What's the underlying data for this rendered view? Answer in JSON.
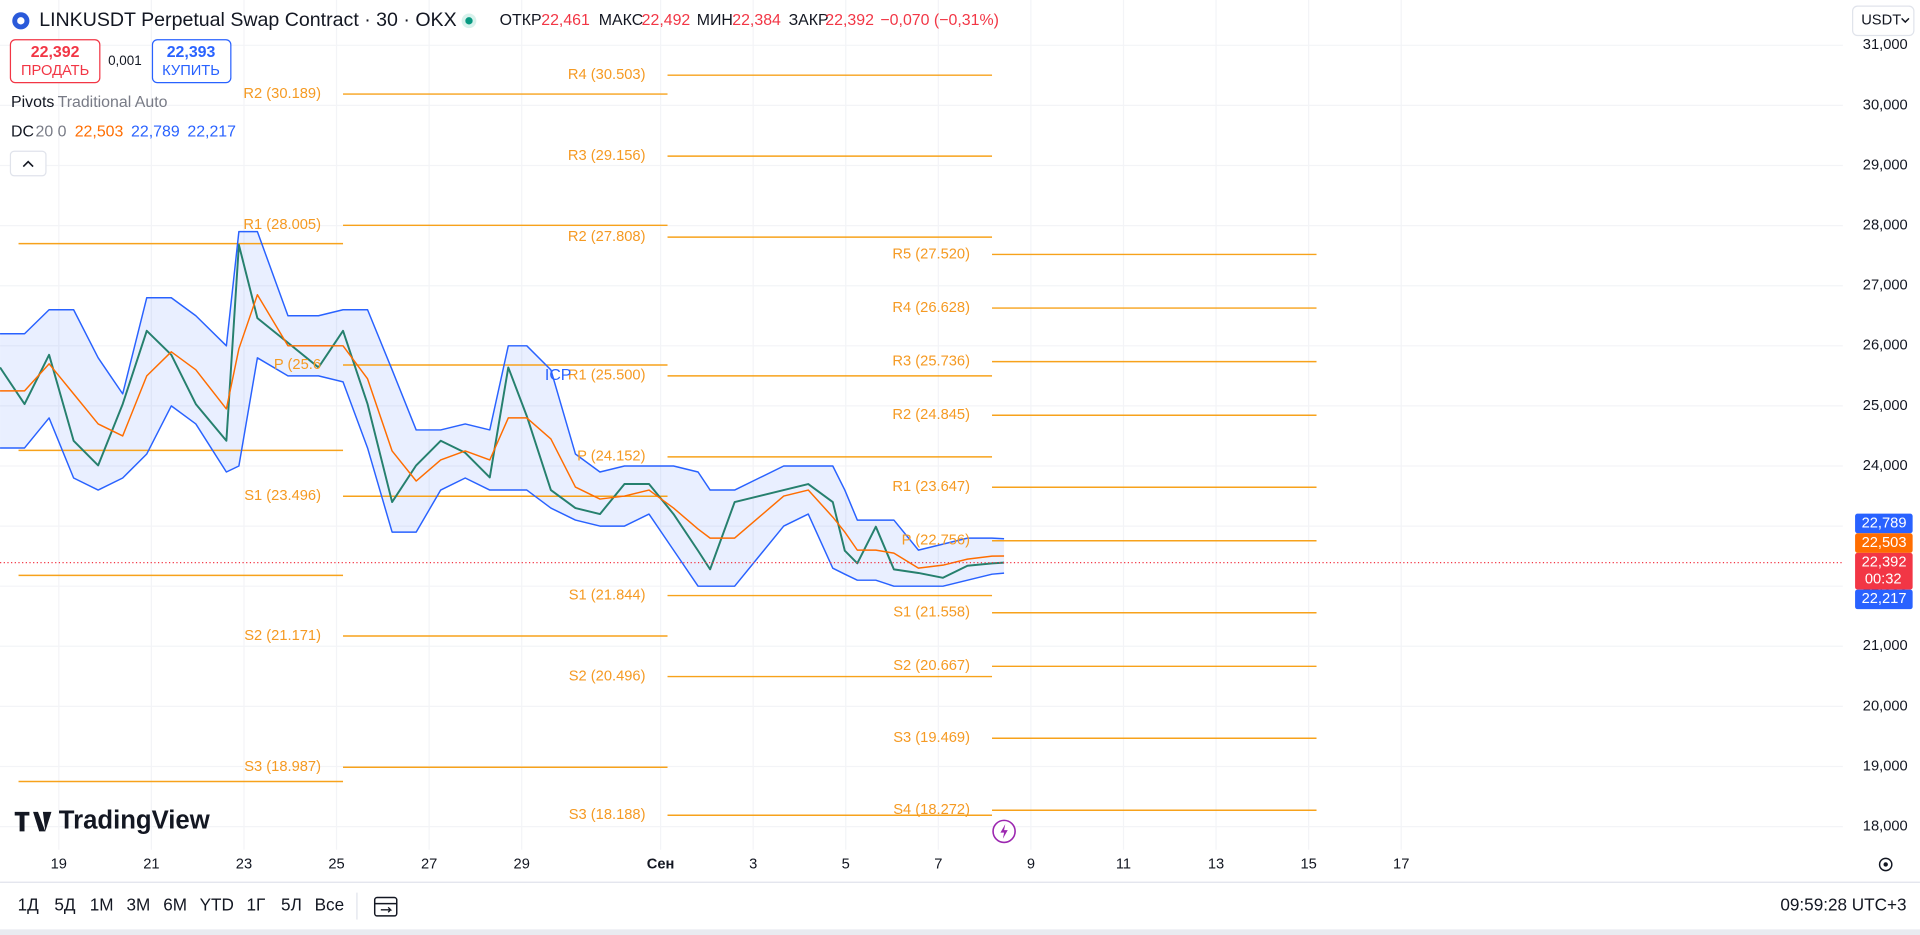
{
  "header": {
    "title": "LINKUSDT Perpetual Swap Contract · 30 · OKX",
    "ohlc": [
      {
        "label": "ОТКР",
        "value": "22,461"
      },
      {
        "label": "МАКС",
        "value": "22,492"
      },
      {
        "label": "МИН",
        "value": "22,384"
      },
      {
        "label": "ЗАКР",
        "value": "22,392"
      }
    ],
    "change": "−0,070 (−0,31%)",
    "currency": "USDT"
  },
  "trade": {
    "sell_price": "22,392",
    "sell": "ПРОДАТЬ",
    "spread": "0,001",
    "buy_price": "22,393",
    "buy": "КУПИТЬ"
  },
  "indicators": {
    "pivots": "Pivots",
    "pivots_settings": "Traditional Auto",
    "dc": "DC",
    "dc_settings": "20 0",
    "dc_values": [
      "22,503",
      "22,789",
      "22,217"
    ]
  },
  "annotation": "ICP",
  "logo": "TradingView",
  "toolbar": {
    "ranges": [
      "1Д",
      "5Д",
      "1М",
      "3М",
      "6М",
      "YTD",
      "1Г",
      "5Л",
      "Все"
    ],
    "clock": "09:59:28 UTC+3"
  },
  "chart_data": {
    "type": "line",
    "grid": true,
    "xlim": [
      17.73,
      57.54
    ],
    "ylim": [
      17.614,
      31.754
    ],
    "xticks": [
      19,
      21,
      23,
      25,
      27,
      29,
      {
        "value": 32,
        "label": "Сен"
      },
      {
        "value": 34,
        "label": "3"
      },
      {
        "value": 36,
        "label": "5"
      },
      {
        "value": 38,
        "label": "7"
      },
      {
        "value": 40,
        "label": "9"
      },
      {
        "value": 42,
        "label": "11"
      },
      {
        "value": 44,
        "label": "13"
      },
      {
        "value": 46,
        "label": "15"
      },
      {
        "value": 48,
        "label": "17"
      }
    ],
    "yticks": [
      {
        "value": 18,
        "label": "18,000"
      },
      {
        "value": 19,
        "label": "19,000"
      },
      {
        "value": 20,
        "label": "20,000"
      },
      {
        "value": 21,
        "label": "21,000"
      },
      {
        "value": 22,
        "label": "22,000"
      },
      {
        "value": 23,
        "label": "23,000"
      },
      {
        "value": 24,
        "label": "24,000"
      },
      {
        "value": 25,
        "label": "25,000"
      },
      {
        "value": 26,
        "label": "26,000"
      },
      {
        "value": 27,
        "label": "27,000"
      },
      {
        "value": 28,
        "label": "28,000"
      },
      {
        "value": 29,
        "label": "29,000"
      },
      {
        "value": 30,
        "label": "30,000"
      },
      {
        "value": 31,
        "label": "31,000"
      }
    ],
    "x": [
      17.73,
      18.26,
      18.79,
      19.32,
      19.85,
      20.38,
      20.9,
      21.43,
      21.96,
      22.62,
      22.89,
      23.29,
      23.95,
      24.61,
      25.14,
      25.67,
      26.2,
      26.72,
      27.25,
      27.78,
      28.31,
      28.71,
      29.11,
      29.63,
      30.16,
      30.69,
      31.22,
      31.75,
      32.28,
      32.81,
      33.07,
      33.6,
      34.13,
      34.66,
      35.19,
      35.72,
      35.98,
      36.25,
      36.65,
      37.04,
      37.57,
      38.1,
      38.63,
      39.16,
      39.42
    ],
    "series": [
      {
        "color": "#26806e",
        "values": [
          25.64,
          25.03,
          25.85,
          24.42,
          24.01,
          25.03,
          26.25,
          25.85,
          25.03,
          24.42,
          27.68,
          26.46,
          26.05,
          25.64,
          26.25,
          25.03,
          23.4,
          24.01,
          24.42,
          24.22,
          23.81,
          25.64,
          24.83,
          23.6,
          23.3,
          23.2,
          23.7,
          23.7,
          23.2,
          22.59,
          22.28,
          23.4,
          23.5,
          23.6,
          23.7,
          23.4,
          22.59,
          22.38,
          22.99,
          22.28,
          22.22,
          22.14,
          22.34,
          22.38,
          22.392
        ]
      },
      {
        "color": "#ff6d00",
        "values": [
          25.25,
          25.25,
          25.7,
          25.2,
          24.7,
          24.5,
          25.5,
          25.9,
          25.6,
          24.95,
          25.95,
          26.85,
          26.0,
          26.0,
          26.0,
          25.45,
          24.25,
          23.75,
          24.1,
          24.25,
          24.1,
          24.8,
          24.8,
          24.45,
          23.65,
          23.45,
          23.5,
          23.6,
          23.3,
          22.95,
          22.8,
          22.8,
          23.15,
          23.5,
          23.6,
          23.15,
          22.9,
          22.6,
          22.6,
          22.55,
          22.3,
          22.35,
          22.45,
          22.5,
          22.503
        ]
      },
      {
        "color": "#2962ff",
        "values": [
          26.2,
          26.2,
          26.6,
          26.6,
          25.8,
          25.2,
          26.8,
          26.8,
          26.5,
          26.0,
          27.9,
          27.9,
          26.5,
          26.5,
          26.6,
          26.6,
          25.6,
          24.6,
          24.6,
          24.7,
          24.6,
          26.0,
          26.0,
          25.6,
          24.2,
          23.9,
          24.0,
          24.0,
          24.0,
          23.9,
          23.6,
          23.6,
          23.8,
          24.0,
          24.0,
          24.0,
          23.6,
          23.1,
          23.1,
          23.1,
          22.6,
          22.7,
          22.8,
          22.8,
          22.789
        ]
      },
      {
        "color": "#2962ff",
        "values": [
          24.3,
          24.3,
          24.8,
          23.8,
          23.6,
          23.8,
          24.2,
          25.0,
          24.7,
          23.9,
          24.0,
          25.8,
          25.5,
          25.5,
          25.4,
          24.3,
          22.9,
          22.9,
          23.6,
          23.8,
          23.6,
          23.6,
          23.6,
          23.3,
          23.1,
          23.0,
          23.0,
          23.2,
          22.6,
          22.0,
          22.0,
          22.0,
          22.5,
          23.0,
          23.2,
          22.3,
          22.2,
          22.1,
          22.1,
          22.0,
          22.0,
          22.0,
          22.1,
          22.2,
          22.217
        ]
      }
    ],
    "channel_fill": "#2962ff",
    "pivot_color": "#f7a21b",
    "pivots": [
      {
        "start": 18.13,
        "end": 25.14,
        "levels": [
          {
            "value": 27.7
          },
          {
            "value": 24.26
          },
          {
            "value": 22.18
          },
          {
            "value": 18.75
          }
        ]
      },
      {
        "start": 25.14,
        "end": 32.15,
        "levels": [
          {
            "label": "R2 (30.189)",
            "value": 30.189
          },
          {
            "label": "R1 (28.005)",
            "value": 28.005
          },
          {
            "label": "P (25.6",
            "value": 25.68
          },
          {
            "label": "S1 (23.496)",
            "value": 23.496
          },
          {
            "label": "S2 (21.171)",
            "value": 21.171
          },
          {
            "label": "S3 (18.987)",
            "value": 18.987
          }
        ]
      },
      {
        "start": 32.15,
        "end": 39.16,
        "levels": [
          {
            "label": "R4 (30.503)",
            "value": 30.503
          },
          {
            "label": "R3 (29.156)",
            "value": 29.156
          },
          {
            "label": "R2 (27.808)",
            "value": 27.808
          },
          {
            "label": "R1 (25.500)",
            "value": 25.5
          },
          {
            "label": "P (24.152)",
            "value": 24.152
          },
          {
            "label": "S1 (21.844)",
            "value": 21.844
          },
          {
            "label": "S2 (20.496)",
            "value": 20.496
          },
          {
            "label": "S3 (18.188)",
            "value": 18.188
          }
        ]
      },
      {
        "start": 39.16,
        "end": 46.17,
        "levels": [
          {
            "label": "R5 (27.520)",
            "value": 27.52
          },
          {
            "label": "R4 (26.628)",
            "value": 26.628
          },
          {
            "label": "R3 (25.736)",
            "value": 25.736
          },
          {
            "label": "R2 (24.845)",
            "value": 24.845
          },
          {
            "label": "R1 (23.647)",
            "value": 23.647
          },
          {
            "label": "P (22.756)",
            "value": 22.756
          },
          {
            "label": "S1 (21.558)",
            "value": 21.558
          },
          {
            "label": "S2 (20.667)",
            "value": 20.667
          },
          {
            "label": "S3 (19.469)",
            "value": 19.469
          },
          {
            "label": "S4 (18.272)",
            "value": 18.272
          }
        ]
      }
    ],
    "price_badges": [
      {
        "value": 22.789,
        "label": "22,789",
        "color": "#2962ff"
      },
      {
        "value": 22.503,
        "label": "22,503",
        "color": "#ff6d00"
      },
      {
        "value": 22.392,
        "label": "22,392",
        "color": "#f23645",
        "countdown": "00:32"
      },
      {
        "value": 22.217,
        "label": "22,217",
        "color": "#2962ff"
      }
    ]
  }
}
